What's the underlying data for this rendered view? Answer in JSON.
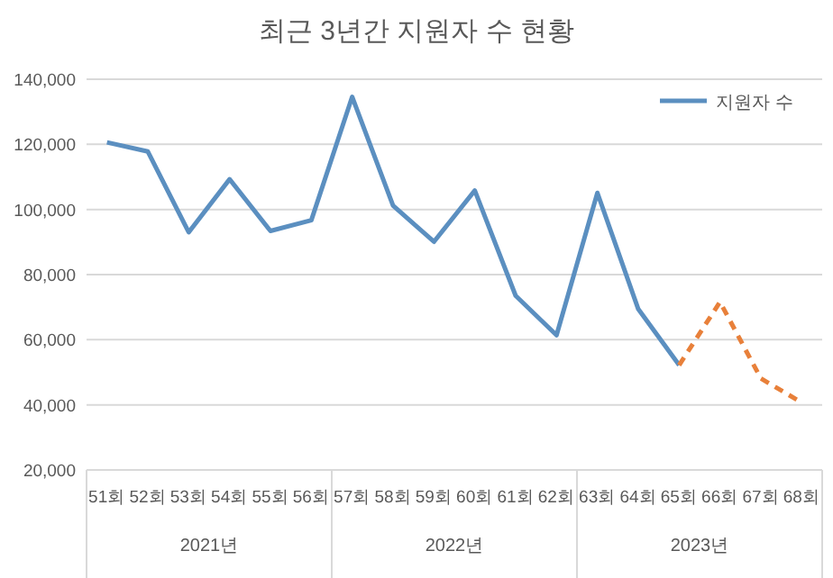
{
  "chart_data": {
    "type": "line",
    "title": "최근 3년간 지원자 수 현황",
    "categories": [
      "51회",
      "52회",
      "53회",
      "54회",
      "55회",
      "56회",
      "57회",
      "58회",
      "59회",
      "60회",
      "61회",
      "62회",
      "63회",
      "64회",
      "65회",
      "66회",
      "67회",
      "68회"
    ],
    "series": [
      {
        "name": "지원자 수",
        "color": "#5b8fc0",
        "line_style": "solid",
        "values": [
          120600,
          117800,
          93000,
          109300,
          93400,
          96700,
          134600,
          101200,
          90100,
          105800,
          73500,
          61400,
          105100,
          69400,
          52200,
          null,
          null,
          null
        ]
      },
      {
        "color": "#e8803a",
        "line_style": "dashed",
        "values": [
          null,
          null,
          null,
          null,
          null,
          null,
          null,
          null,
          null,
          null,
          null,
          null,
          null,
          null,
          52200,
          71600,
          48100,
          40700
        ]
      }
    ],
    "ylim": [
      20000,
      140000
    ],
    "yticks": [
      {
        "value": 20000,
        "label": "20,000"
      },
      {
        "value": 40000,
        "label": "40,000"
      },
      {
        "value": 60000,
        "label": "60,000"
      },
      {
        "value": 80000,
        "label": "80,000"
      },
      {
        "value": 100000,
        "label": "100,000"
      },
      {
        "value": 120000,
        "label": "120,000"
      },
      {
        "value": 140000,
        "label": "140,000"
      }
    ],
    "annotations": [
      "2021년",
      "2022년",
      "2023년"
    ],
    "grid": "y",
    "legend": "top right",
    "marker": "none"
  }
}
